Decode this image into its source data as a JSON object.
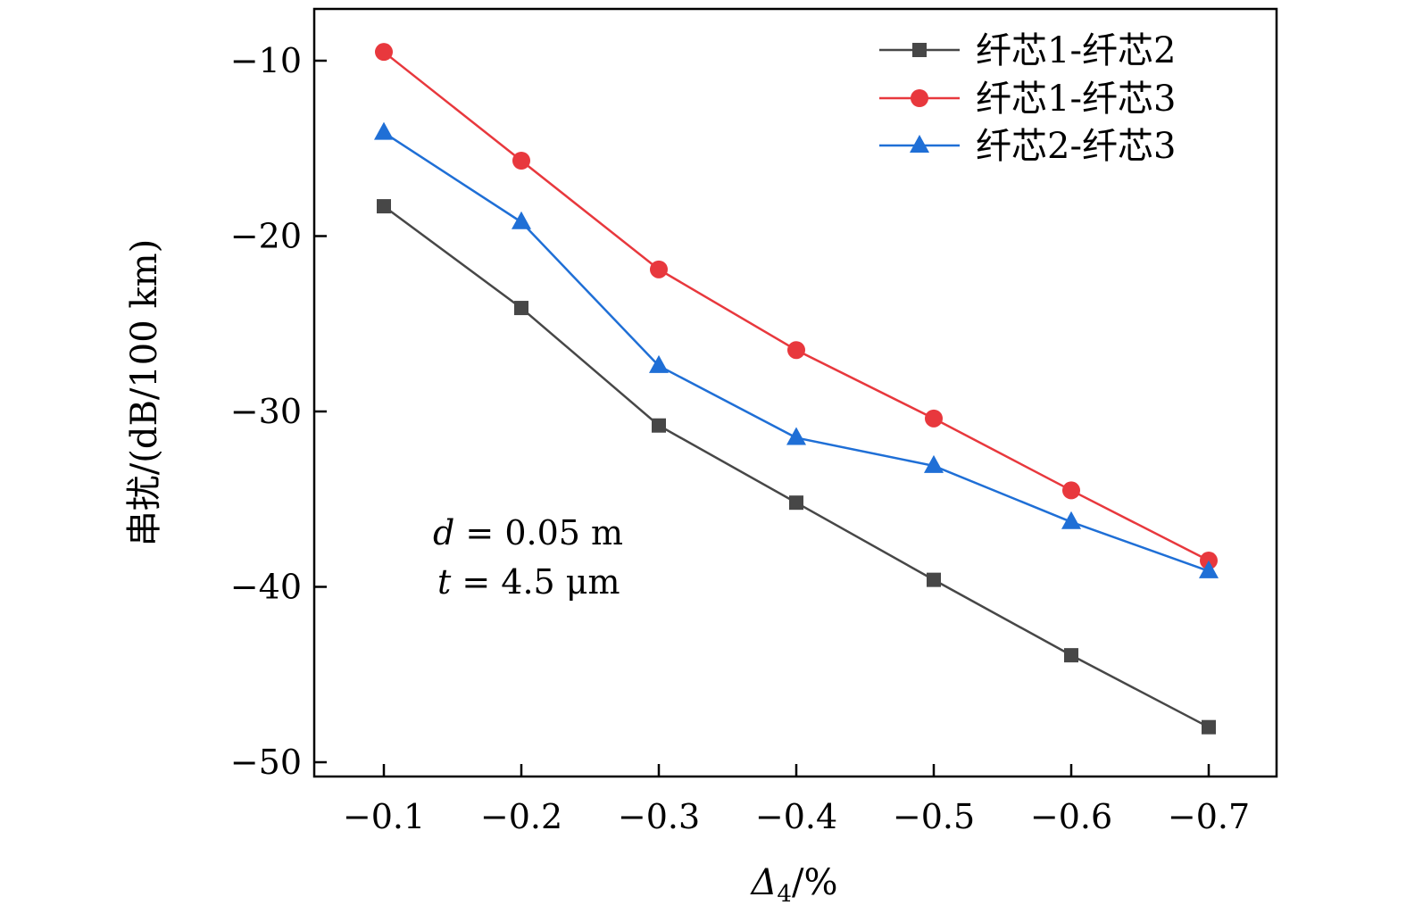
{
  "chart_data": {
    "type": "line",
    "xlabel_main": "Δ",
    "xlabel_sub": "4",
    "xlabel_tail": "/%",
    "ylabel": "串扰/(dB/100 km)",
    "x": [
      -0.1,
      -0.2,
      -0.3,
      -0.4,
      -0.5,
      -0.6,
      -0.7
    ],
    "x_tick_labels": [
      "−0.1",
      "−0.2",
      "−0.3",
      "−0.4",
      "−0.5",
      "−0.6",
      "−0.7"
    ],
    "y_ticks": [
      -10,
      -20,
      -30,
      -40,
      -50
    ],
    "y_tick_labels": [
      "−10",
      "−20",
      "−30",
      "−40",
      "−50"
    ],
    "ylim": [
      -51,
      -7
    ],
    "grid": false,
    "legend_position": "top-right",
    "series": [
      {
        "name": "纤芯1-纤芯2",
        "marker": "square",
        "color": "#474747",
        "values": [
          -18.3,
          -24.1,
          -30.8,
          -35.2,
          -39.6,
          -43.9,
          -48.0
        ]
      },
      {
        "name": "纤芯1-纤芯3",
        "marker": "circle",
        "color": "#e8383d",
        "values": [
          -9.5,
          -15.7,
          -21.9,
          -26.5,
          -30.4,
          -34.5,
          -38.5
        ]
      },
      {
        "name": "纤芯2-纤芯3",
        "marker": "triangle",
        "color": "#1f6fd6",
        "values": [
          -14.1,
          -19.2,
          -27.4,
          -31.5,
          -33.1,
          -36.3,
          -39.1
        ]
      }
    ],
    "annotations": [
      {
        "var": "d",
        "rest": " = 0.05 m"
      },
      {
        "var": "t",
        "rest": " = 4.5 μm"
      }
    ]
  }
}
